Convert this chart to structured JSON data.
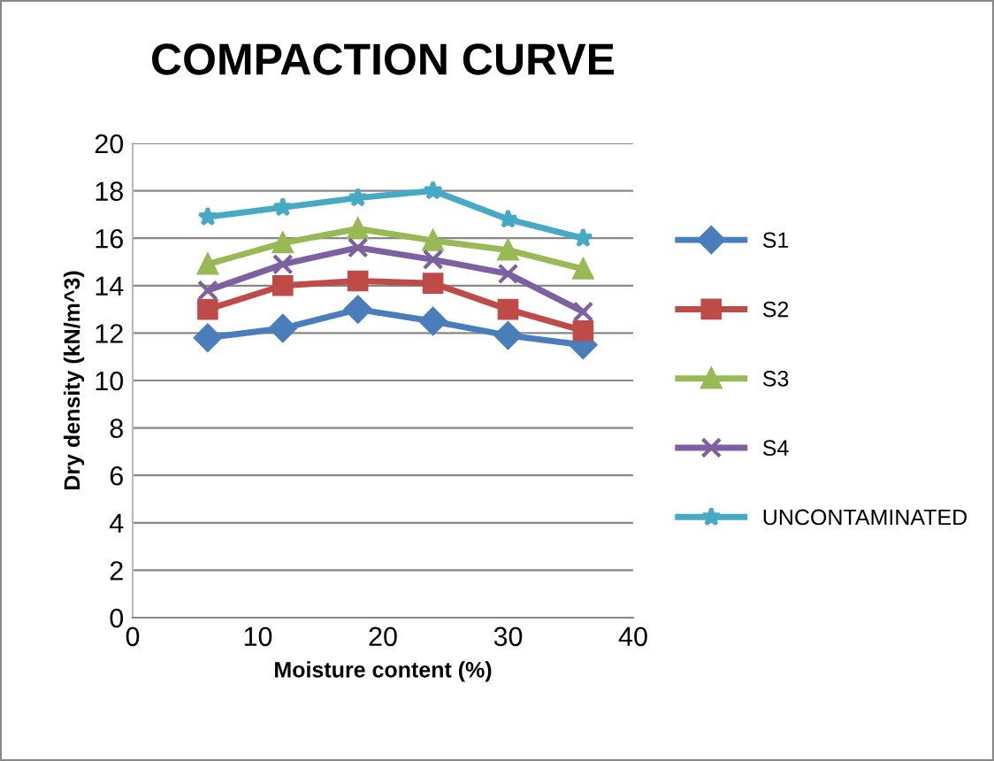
{
  "chart_data": {
    "type": "line",
    "title": "COMPACTION CURVE",
    "xlabel": "Moisture content (%)",
    "ylabel": "Dry density (kN/m^3)",
    "x": [
      6,
      12,
      18,
      24,
      30,
      36
    ],
    "series": [
      {
        "name": "S1",
        "color": "#4a7ebb",
        "marker": "diamond",
        "values": [
          11.8,
          12.2,
          13.0,
          12.5,
          11.9,
          11.5
        ]
      },
      {
        "name": "S2",
        "color": "#be4b48",
        "marker": "square",
        "values": [
          13.0,
          14.0,
          14.2,
          14.1,
          13.0,
          12.1
        ]
      },
      {
        "name": "S3",
        "color": "#98b954",
        "marker": "triangle",
        "values": [
          14.9,
          15.8,
          16.4,
          15.9,
          15.5,
          14.7
        ]
      },
      {
        "name": "S4",
        "color": "#7d60a0",
        "marker": "cross",
        "values": [
          13.8,
          14.9,
          15.6,
          15.1,
          14.5,
          12.9
        ]
      },
      {
        "name": "UNCONTAMINATED",
        "color": "#46aac5",
        "marker": "star",
        "values": [
          16.9,
          17.3,
          17.7,
          18.0,
          16.8,
          16.0
        ]
      }
    ],
    "xlim": [
      0,
      40
    ],
    "xticks": [
      0,
      10,
      20,
      30,
      40
    ],
    "ylim": [
      0,
      20
    ],
    "yticks": [
      0,
      2,
      4,
      6,
      8,
      10,
      12,
      14,
      16,
      18,
      20
    ],
    "grid": "y",
    "legend": "right",
    "line_style": "solid"
  }
}
